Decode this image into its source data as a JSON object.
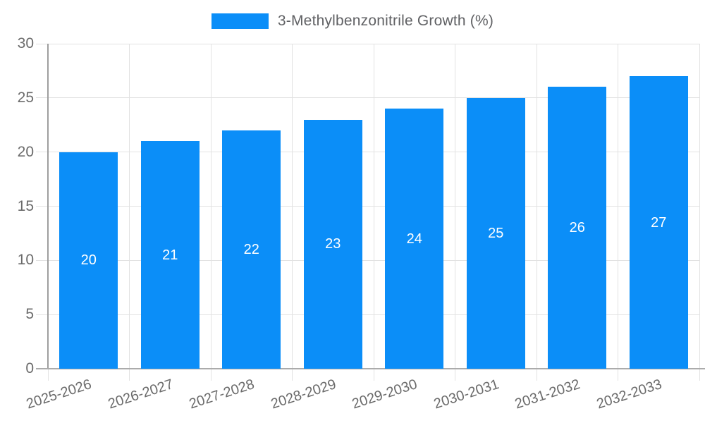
{
  "legend": {
    "label": "3-Methylbenzonitrile Growth (%)"
  },
  "colors": {
    "bar": "#0B8EF8",
    "grid": "#E2E2E2",
    "axis": "#9E9E9E",
    "tick_text": "#6B6B6B",
    "legend_text": "#606164",
    "value_text": "#FFFFFF"
  },
  "chart_data": {
    "type": "bar",
    "title": "3-Methylbenzonitrile Growth (%)",
    "categories": [
      "2025-2026",
      "2026-2027",
      "2027-2028",
      "2028-2029",
      "2029-2030",
      "2030-2031",
      "2031-2032",
      "2032-2033"
    ],
    "values": [
      20,
      21,
      22,
      23,
      24,
      25,
      26,
      27
    ],
    "series": [
      {
        "name": "3-Methylbenzonitrile Growth (%)",
        "values": [
          20,
          21,
          22,
          23,
          24,
          25,
          26,
          27
        ]
      }
    ],
    "xlabel": "",
    "ylabel": "",
    "ylim": [
      0,
      30
    ],
    "yticks": [
      0,
      5,
      10,
      15,
      20,
      25,
      30
    ],
    "grid": true,
    "legend_position": "top-center",
    "value_labels": "inside-middle",
    "xtick_rotation_deg": -18
  }
}
